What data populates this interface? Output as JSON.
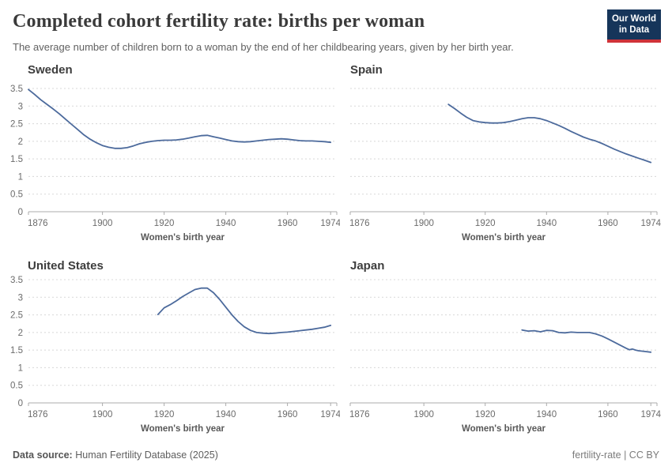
{
  "header": {
    "title": "Completed cohort fertility rate: births per woman",
    "subtitle": "The average number of children born to a woman by the end of her childbearing years, given by her birth year.",
    "logo_line1": "Our World",
    "logo_line2": "in Data"
  },
  "colors": {
    "line": "#4c6a9c",
    "grid": "#d8d8d8",
    "axis": "#ababab",
    "logo_navy": "#16355a",
    "logo_red": "#cf3339"
  },
  "chart_data": [
    {
      "type": "line",
      "title": "Sweden",
      "xlabel": "Women's birth year",
      "ylabel": "",
      "xlim": [
        1876,
        1976
      ],
      "ylim": [
        0,
        3.5
      ],
      "xticks": [
        1876,
        1900,
        1920,
        1940,
        1960,
        1974
      ],
      "yticks": [
        0,
        0.5,
        1,
        1.5,
        2,
        2.5,
        3,
        3.5
      ],
      "show_y_labels": true,
      "grid": true,
      "x": [
        1876,
        1878,
        1880,
        1882,
        1884,
        1886,
        1888,
        1890,
        1892,
        1894,
        1896,
        1898,
        1900,
        1902,
        1904,
        1906,
        1908,
        1910,
        1912,
        1914,
        1916,
        1918,
        1920,
        1922,
        1924,
        1926,
        1928,
        1930,
        1932,
        1934,
        1936,
        1938,
        1940,
        1942,
        1944,
        1946,
        1948,
        1950,
        1952,
        1954,
        1956,
        1958,
        1960,
        1962,
        1964,
        1966,
        1968,
        1970,
        1972,
        1974
      ],
      "y": [
        3.47,
        3.33,
        3.18,
        3.05,
        2.92,
        2.78,
        2.63,
        2.48,
        2.33,
        2.18,
        2.06,
        1.96,
        1.88,
        1.83,
        1.8,
        1.8,
        1.82,
        1.87,
        1.93,
        1.97,
        2.0,
        2.02,
        2.03,
        2.03,
        2.04,
        2.06,
        2.09,
        2.13,
        2.16,
        2.17,
        2.13,
        2.09,
        2.05,
        2.01,
        1.99,
        1.98,
        1.99,
        2.01,
        2.03,
        2.05,
        2.06,
        2.07,
        2.06,
        2.04,
        2.02,
        2.01,
        2.01,
        2.0,
        1.99,
        1.97
      ]
    },
    {
      "type": "line",
      "title": "Spain",
      "xlabel": "Women's birth year",
      "ylabel": "",
      "xlim": [
        1876,
        1976
      ],
      "ylim": [
        0,
        3.5
      ],
      "xticks": [
        1876,
        1900,
        1920,
        1940,
        1960,
        1974
      ],
      "yticks": [
        0,
        0.5,
        1,
        1.5,
        2,
        2.5,
        3,
        3.5
      ],
      "show_y_labels": false,
      "grid": true,
      "x": [
        1908,
        1910,
        1912,
        1914,
        1916,
        1918,
        1920,
        1922,
        1924,
        1926,
        1928,
        1930,
        1932,
        1934,
        1936,
        1938,
        1940,
        1942,
        1944,
        1946,
        1948,
        1950,
        1952,
        1954,
        1956,
        1958,
        1960,
        1962,
        1964,
        1966,
        1968,
        1970,
        1972,
        1974
      ],
      "y": [
        3.05,
        2.93,
        2.8,
        2.68,
        2.59,
        2.55,
        2.53,
        2.52,
        2.52,
        2.53,
        2.56,
        2.6,
        2.64,
        2.67,
        2.67,
        2.64,
        2.59,
        2.52,
        2.45,
        2.37,
        2.28,
        2.2,
        2.12,
        2.06,
        2.01,
        1.94,
        1.86,
        1.78,
        1.71,
        1.64,
        1.58,
        1.52,
        1.46,
        1.4
      ]
    },
    {
      "type": "line",
      "title": "United States",
      "xlabel": "Women's birth year",
      "ylabel": "",
      "xlim": [
        1876,
        1976
      ],
      "ylim": [
        0,
        3.5
      ],
      "xticks": [
        1876,
        1900,
        1920,
        1940,
        1960,
        1974
      ],
      "yticks": [
        0,
        0.5,
        1,
        1.5,
        2,
        2.5,
        3,
        3.5
      ],
      "show_y_labels": true,
      "grid": true,
      "x": [
        1918,
        1920,
        1922,
        1924,
        1926,
        1928,
        1930,
        1932,
        1934,
        1936,
        1938,
        1940,
        1942,
        1944,
        1946,
        1948,
        1950,
        1952,
        1954,
        1956,
        1958,
        1960,
        1962,
        1964,
        1966,
        1968,
        1970,
        1972,
        1974
      ],
      "y": [
        2.51,
        2.7,
        2.79,
        2.9,
        3.02,
        3.12,
        3.22,
        3.26,
        3.26,
        3.13,
        2.94,
        2.72,
        2.5,
        2.31,
        2.16,
        2.06,
        2.0,
        1.98,
        1.97,
        1.98,
        2.0,
        2.01,
        2.03,
        2.05,
        2.07,
        2.09,
        2.12,
        2.15,
        2.2
      ]
    },
    {
      "type": "line",
      "title": "Japan",
      "xlabel": "Women's birth year",
      "ylabel": "",
      "xlim": [
        1876,
        1976
      ],
      "ylim": [
        0,
        3.5
      ],
      "xticks": [
        1876,
        1900,
        1920,
        1940,
        1960,
        1974
      ],
      "yticks": [
        0,
        0.5,
        1,
        1.5,
        2,
        2.5,
        3,
        3.5
      ],
      "show_y_labels": false,
      "grid": true,
      "x": [
        1932,
        1934,
        1936,
        1938,
        1940,
        1942,
        1944,
        1946,
        1948,
        1950,
        1952,
        1954,
        1956,
        1958,
        1960,
        1962,
        1964,
        1966,
        1967,
        1968,
        1969,
        1970,
        1972,
        1974
      ],
      "y": [
        2.07,
        2.04,
        2.05,
        2.02,
        2.06,
        2.05,
        2.0,
        1.99,
        2.01,
        2.0,
        2.0,
        2.0,
        1.96,
        1.9,
        1.82,
        1.73,
        1.64,
        1.55,
        1.51,
        1.53,
        1.5,
        1.48,
        1.46,
        1.44
      ]
    }
  ],
  "footer": {
    "data_source_label": "Data source:",
    "data_source_value": "Human Fertility Database (2025)",
    "credit": "fertility-rate | CC BY"
  }
}
